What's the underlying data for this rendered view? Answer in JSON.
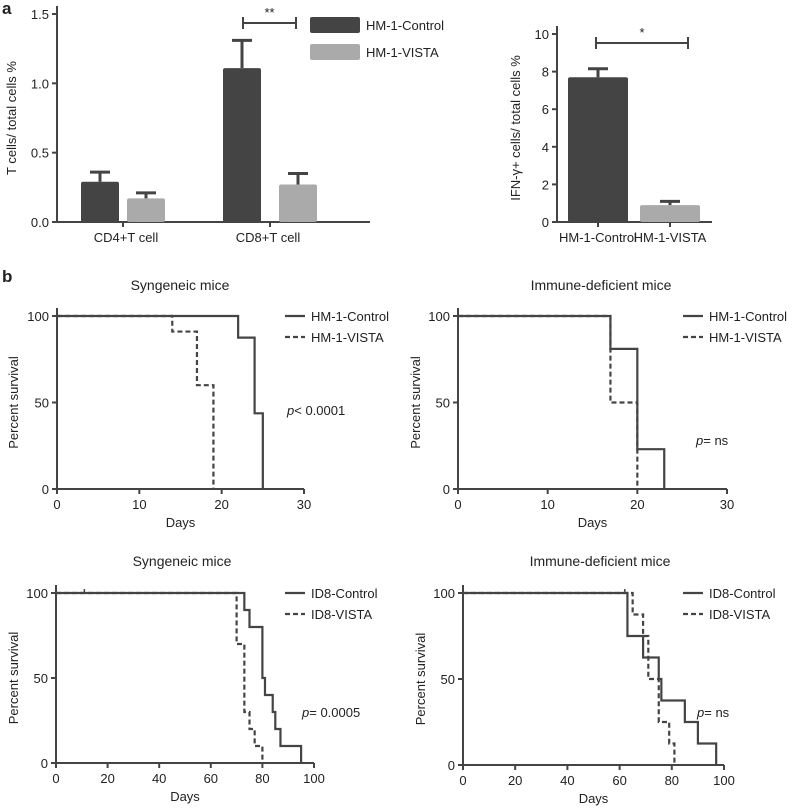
{
  "panel_labels": {
    "a": "a",
    "b": "b"
  },
  "colors": {
    "control": "#444444",
    "vista": "#aaaaaa",
    "axis": "#444444"
  },
  "chart_data": [
    {
      "id": "a1",
      "type": "bar",
      "ylabel": "T cells/ total cells %",
      "categories": [
        "CD4+T cell",
        "CD8+T cell"
      ],
      "ylim": [
        0,
        1.5
      ],
      "yticks": [
        "0.0",
        "0.5",
        "1.0",
        "1.5"
      ],
      "series": [
        {
          "name": "HM-1-Control",
          "values": [
            0.29,
            1.11
          ],
          "errors": [
            0.07,
            0.2
          ]
        },
        {
          "name": "HM-1-VISTA",
          "values": [
            0.17,
            0.27
          ],
          "errors": [
            0.04,
            0.08
          ]
        }
      ],
      "significance": [
        {
          "category": "CD8+T cell",
          "label": "**"
        }
      ],
      "legend": "top-right"
    },
    {
      "id": "a2",
      "type": "bar",
      "ylabel": "IFN-γ+ cells/ total cells %",
      "categories": [
        "HM-1-Control",
        "HM-1-VISTA"
      ],
      "ylim": [
        0,
        10
      ],
      "yticks": [
        "0",
        "2",
        "4",
        "6",
        "8",
        "10"
      ],
      "values": [
        7.7,
        0.9
      ],
      "errors": [
        0.45,
        0.2
      ],
      "significance": [
        {
          "label": "*"
        }
      ]
    },
    {
      "id": "b1",
      "type": "line",
      "title": "Syngeneic mice",
      "xlabel": "Days",
      "ylabel": "Percent survival",
      "xlim": [
        0,
        30
      ],
      "xticks": [
        "0",
        "10",
        "20",
        "30"
      ],
      "ylim": [
        0,
        100
      ],
      "yticks": [
        "0",
        "50",
        "100"
      ],
      "series": [
        {
          "name": "HM-1-Control",
          "style": "solid",
          "steps": [
            [
              0,
              100
            ],
            [
              22,
              87.5
            ],
            [
              24,
              43.75
            ],
            [
              25,
              0
            ]
          ]
        },
        {
          "name": "HM-1-VISTA",
          "style": "dashed",
          "steps": [
            [
              0,
              100
            ],
            [
              14,
              91
            ],
            [
              17,
              60
            ],
            [
              19,
              0
            ]
          ]
        }
      ],
      "pvalue": {
        "p": "p",
        "rest": "< 0.0001"
      }
    },
    {
      "id": "b2",
      "type": "line",
      "title": "Immune-deficient mice",
      "xlabel": "Days",
      "ylabel": "Percent survival",
      "xlim": [
        0,
        30
      ],
      "xticks": [
        "0",
        "10",
        "20",
        "30"
      ],
      "ylim": [
        0,
        100
      ],
      "yticks": [
        "0",
        "50",
        "100"
      ],
      "series": [
        {
          "name": "HM-1-Control",
          "style": "solid",
          "steps": [
            [
              0,
              100
            ],
            [
              17,
              81
            ],
            [
              20,
              23
            ],
            [
              23,
              0
            ]
          ]
        },
        {
          "name": "HM-1-VISTA",
          "style": "dashed",
          "steps": [
            [
              0,
              100
            ],
            [
              17,
              50
            ],
            [
              20,
              0
            ]
          ]
        }
      ],
      "pvalue": {
        "p": "p",
        "rest": "= ns"
      }
    },
    {
      "id": "b3",
      "type": "line",
      "title": "Syngeneic mice",
      "xlabel": "Days",
      "ylabel": "Percent survival",
      "xlim": [
        0,
        100
      ],
      "xticks": [
        "0",
        "20",
        "40",
        "60",
        "80",
        "100"
      ],
      "ylim": [
        0,
        100
      ],
      "yticks": [
        "0",
        "50",
        "100"
      ],
      "series": [
        {
          "name": "ID8-Control",
          "style": "solid",
          "steps": [
            [
              0,
              100
            ],
            [
              73,
              90
            ],
            [
              75,
              80
            ],
            [
              80,
              50
            ],
            [
              81,
              40
            ],
            [
              84,
              30
            ],
            [
              85,
              20
            ],
            [
              87,
              10
            ],
            [
              95,
              0
            ]
          ],
          "censored": [
            11
          ]
        },
        {
          "name": "ID8-VISTA",
          "style": "dashed",
          "steps": [
            [
              0,
              100
            ],
            [
              70,
              70
            ],
            [
              73,
              30
            ],
            [
              75,
              20
            ],
            [
              77,
              10
            ],
            [
              80,
              0
            ]
          ]
        }
      ],
      "pvalue": {
        "p": "p",
        "rest": "= 0.0005"
      }
    },
    {
      "id": "b4",
      "type": "line",
      "title": "Immune-deficient mice",
      "xlabel": "Days",
      "ylabel": "Percent survival",
      "xlim": [
        0,
        100
      ],
      "xticks": [
        "0",
        "20",
        "40",
        "60",
        "80",
        "100"
      ],
      "ylim": [
        0,
        100
      ],
      "yticks": [
        "0",
        "50",
        "100"
      ],
      "series": [
        {
          "name": "ID8-Control",
          "style": "solid",
          "steps": [
            [
              0,
              100
            ],
            [
              63,
              75
            ],
            [
              69,
              62.5
            ],
            [
              75,
              50
            ],
            [
              76,
              37.5
            ],
            [
              85,
              25
            ],
            [
              90,
              12.5
            ],
            [
              97,
              0
            ]
          ],
          "censored": [
            62
          ]
        },
        {
          "name": "ID8-VISTA",
          "style": "dashed",
          "steps": [
            [
              0,
              100
            ],
            [
              65,
              87.5
            ],
            [
              69,
              75
            ],
            [
              71,
              50
            ],
            [
              75,
              25
            ],
            [
              79,
              12.5
            ],
            [
              81,
              0
            ]
          ]
        }
      ],
      "pvalue": {
        "p": "p",
        "rest": "= ns"
      }
    }
  ]
}
